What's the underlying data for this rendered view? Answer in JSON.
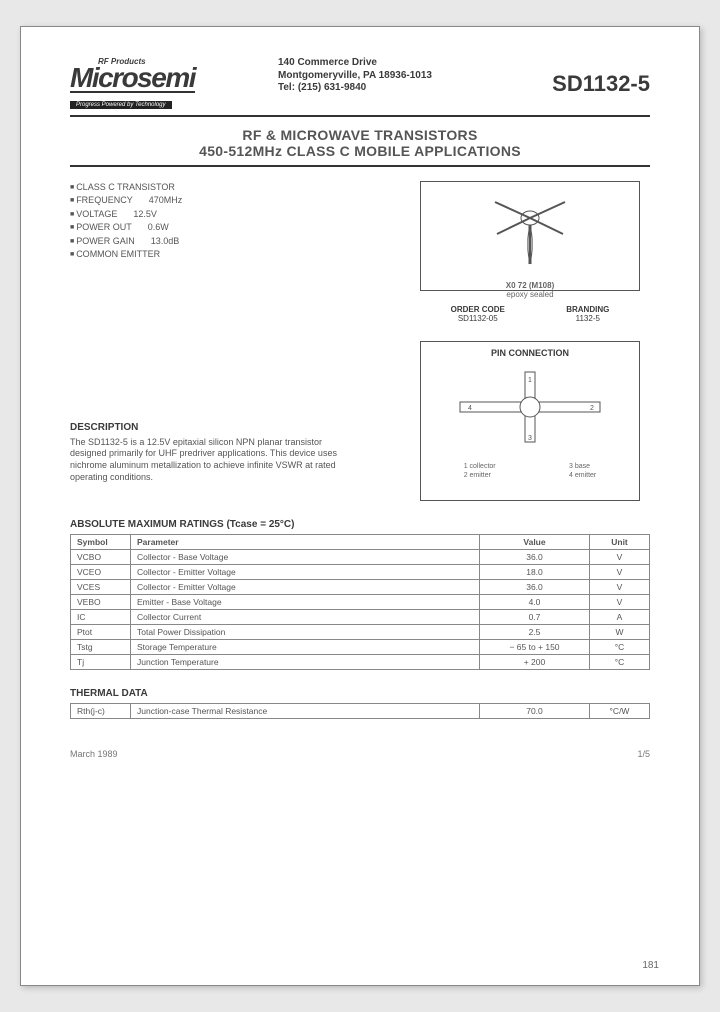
{
  "company": {
    "superscript": "RF Products",
    "name": "Microsemi",
    "tagline": "Progress Powered by Technology",
    "address1": "140 Commerce Drive",
    "address2": "Montgomeryville, PA 18936-1013",
    "tel": "Tel: (215) 631-9840"
  },
  "partNumber": "SD1132-5",
  "title": {
    "line1": "RF & MICROWAVE TRANSISTORS",
    "line2": "450-512MHz CLASS C MOBILE APPLICATIONS"
  },
  "features": [
    {
      "label": "CLASS C TRANSISTOR",
      "value": ""
    },
    {
      "label": "FREQUENCY",
      "value": "470MHz"
    },
    {
      "label": "VOLTAGE",
      "value": "12.5V"
    },
    {
      "label": "POWER OUT",
      "value": "0.6W"
    },
    {
      "label": "POWER GAIN",
      "value": "13.0dB"
    },
    {
      "label": "COMMON EMITTER",
      "value": ""
    }
  ],
  "package": {
    "code": "X0 72 (M108)",
    "seal": "epoxy sealed",
    "orderHead": "ORDER CODE",
    "orderVal": "SD1132-05",
    "brandHead": "BRANDING",
    "brandVal": "1132-5"
  },
  "pinbox": {
    "title": "PIN CONNECTION",
    "legend": {
      "l1": "1 collector",
      "l2": "2 emitter",
      "r1": "3 base",
      "r2": "4 emitter"
    }
  },
  "description": {
    "head": "DESCRIPTION",
    "body": "The SD1132-5 is a 12.5V epitaxial silicon NPN planar transistor designed primarily for UHF predriver applications. This device uses nichrome aluminum metallization to achieve infinite VSWR at rated operating conditions."
  },
  "amr": {
    "head": "ABSOLUTE MAXIMUM RATINGS (Tcase = 25°C)",
    "cols": {
      "sym": "Symbol",
      "param": "Parameter",
      "val": "Value",
      "unit": "Unit"
    },
    "rows": [
      {
        "sym": "VCBO",
        "param": "Collector - Base Voltage",
        "val": "36.0",
        "unit": "V"
      },
      {
        "sym": "VCEO",
        "param": "Collector - Emitter Voltage",
        "val": "18.0",
        "unit": "V"
      },
      {
        "sym": "VCES",
        "param": "Collector - Emitter Voltage",
        "val": "36.0",
        "unit": "V"
      },
      {
        "sym": "VEBO",
        "param": "Emitter - Base Voltage",
        "val": "4.0",
        "unit": "V"
      },
      {
        "sym": "IC",
        "param": "Collector Current",
        "val": "0.7",
        "unit": "A"
      },
      {
        "sym": "Ptot",
        "param": "Total Power Dissipation",
        "val": "2.5",
        "unit": "W"
      },
      {
        "sym": "Tstg",
        "param": "Storage Temperature",
        "val": "− 65 to + 150",
        "unit": "°C"
      },
      {
        "sym": "Tj",
        "param": "Junction Temperature",
        "val": "+ 200",
        "unit": "°C"
      }
    ]
  },
  "thermal": {
    "head": "THERMAL DATA",
    "rows": [
      {
        "sym": "Rth(j-c)",
        "param": "Junction-case Thermal Resistance",
        "val": "70.0",
        "unit": "°C/W"
      }
    ]
  },
  "footer": {
    "date": "March 1989",
    "page": "1/5",
    "corner": "181"
  }
}
